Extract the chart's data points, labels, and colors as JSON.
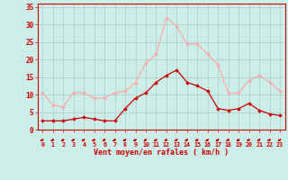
{
  "x": [
    0,
    1,
    2,
    3,
    4,
    5,
    6,
    7,
    8,
    9,
    10,
    11,
    12,
    13,
    14,
    15,
    16,
    17,
    18,
    19,
    20,
    21,
    22,
    23
  ],
  "wind_avg": [
    2.5,
    2.5,
    2.5,
    3.0,
    3.5,
    3.0,
    2.5,
    2.5,
    6.0,
    9.0,
    10.5,
    13.5,
    15.5,
    17.0,
    13.5,
    12.5,
    11.0,
    6.0,
    5.5,
    6.0,
    7.5,
    5.5,
    4.5,
    4.0
  ],
  "wind_gust": [
    10.5,
    7.0,
    6.5,
    10.5,
    10.5,
    9.0,
    9.0,
    10.5,
    11.0,
    13.5,
    19.0,
    21.5,
    32.0,
    29.5,
    24.5,
    24.5,
    21.5,
    18.5,
    10.5,
    10.5,
    14.0,
    15.5,
    13.5,
    11.0
  ],
  "avg_color": "#cc0000",
  "gust_color": "#ffaaaa",
  "background_color": "#cceee8",
  "grid_color": "#aacccc",
  "xlabel": "Vent moyen/en rafales ( km/h )",
  "ylabel_ticks": [
    0,
    5,
    10,
    15,
    20,
    25,
    30,
    35
  ],
  "ylim": [
    0,
    36
  ],
  "xlim": [
    -0.5,
    23.5
  ],
  "tick_color": "#cc0000",
  "label_color": "#cc0000"
}
